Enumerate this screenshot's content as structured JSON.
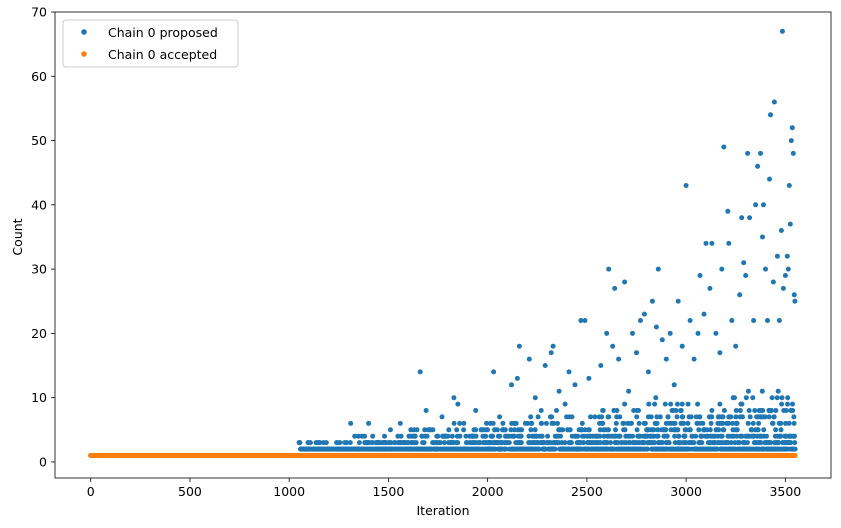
{
  "chart_data": {
    "type": "scatter",
    "title": "",
    "xlabel": "Iteration",
    "ylabel": "Count",
    "xlim": [
      -180,
      3730
    ],
    "ylim": [
      -2.5,
      70
    ],
    "xticks": [
      0,
      500,
      1000,
      1500,
      2000,
      2500,
      3000,
      3500
    ],
    "yticks": [
      0,
      10,
      20,
      30,
      40,
      50,
      60,
      70
    ],
    "grid": false,
    "legend_position": "top-left",
    "series": [
      {
        "name": "Chain 0 proposed",
        "color": "#1f77b4",
        "n_points": 3550,
        "baseline_value": 1,
        "points": [
          [
            1050,
            3
          ],
          [
            1090,
            2
          ],
          [
            1150,
            3
          ],
          [
            1200,
            2
          ],
          [
            1290,
            3
          ],
          [
            1310,
            6
          ],
          [
            1330,
            4
          ],
          [
            1350,
            2
          ],
          [
            1380,
            4
          ],
          [
            1400,
            6
          ],
          [
            1420,
            3
          ],
          [
            1450,
            2
          ],
          [
            1480,
            4
          ],
          [
            1510,
            5
          ],
          [
            1530,
            3
          ],
          [
            1560,
            6
          ],
          [
            1600,
            2
          ],
          [
            1630,
            3
          ],
          [
            1660,
            14
          ],
          [
            1690,
            8
          ],
          [
            1710,
            5
          ],
          [
            1740,
            3
          ],
          [
            1770,
            7
          ],
          [
            1800,
            4
          ],
          [
            1830,
            10
          ],
          [
            1850,
            9
          ],
          [
            1880,
            6
          ],
          [
            1910,
            3
          ],
          [
            1940,
            8
          ],
          [
            1970,
            5
          ],
          [
            2000,
            2
          ],
          [
            2030,
            14
          ],
          [
            2060,
            7
          ],
          [
            2090,
            4
          ],
          [
            2120,
            12
          ],
          [
            2150,
            13
          ],
          [
            2160,
            18
          ],
          [
            2190,
            6
          ],
          [
            2210,
            16
          ],
          [
            2240,
            10
          ],
          [
            2270,
            8
          ],
          [
            2290,
            15
          ],
          [
            2320,
            17
          ],
          [
            2330,
            18
          ],
          [
            2360,
            11
          ],
          [
            2390,
            9
          ],
          [
            2410,
            14
          ],
          [
            2440,
            12
          ],
          [
            2470,
            22
          ],
          [
            2490,
            22
          ],
          [
            2510,
            13
          ],
          [
            2540,
            7
          ],
          [
            2570,
            15
          ],
          [
            2600,
            20
          ],
          [
            2610,
            30
          ],
          [
            2630,
            18
          ],
          [
            2640,
            27
          ],
          [
            2660,
            16
          ],
          [
            2690,
            28
          ],
          [
            2710,
            11
          ],
          [
            2730,
            20
          ],
          [
            2750,
            17
          ],
          [
            2770,
            22
          ],
          [
            2790,
            23
          ],
          [
            2810,
            14
          ],
          [
            2830,
            25
          ],
          [
            2850,
            21
          ],
          [
            2860,
            30
          ],
          [
            2880,
            19
          ],
          [
            2900,
            16
          ],
          [
            2920,
            20
          ],
          [
            2940,
            12
          ],
          [
            2960,
            25
          ],
          [
            2980,
            18
          ],
          [
            3000,
            43
          ],
          [
            3020,
            22
          ],
          [
            3040,
            16
          ],
          [
            3060,
            20
          ],
          [
            3070,
            29
          ],
          [
            3090,
            23
          ],
          [
            3100,
            34
          ],
          [
            3120,
            27
          ],
          [
            3130,
            34
          ],
          [
            3150,
            20
          ],
          [
            3170,
            17
          ],
          [
            3180,
            30
          ],
          [
            3190,
            49
          ],
          [
            3210,
            39
          ],
          [
            3215,
            34
          ],
          [
            3230,
            22
          ],
          [
            3250,
            18
          ],
          [
            3270,
            26
          ],
          [
            3280,
            38
          ],
          [
            3290,
            31
          ],
          [
            3300,
            29
          ],
          [
            3310,
            48
          ],
          [
            3320,
            38
          ],
          [
            3340,
            22
          ],
          [
            3350,
            40
          ],
          [
            3360,
            46
          ],
          [
            3375,
            48
          ],
          [
            3385,
            35
          ],
          [
            3390,
            40
          ],
          [
            3400,
            30
          ],
          [
            3410,
            22
          ],
          [
            3420,
            44
          ],
          [
            3425,
            54
          ],
          [
            3440,
            28
          ],
          [
            3445,
            56
          ],
          [
            3460,
            32
          ],
          [
            3470,
            22
          ],
          [
            3480,
            36
          ],
          [
            3485,
            67
          ],
          [
            3490,
            27
          ],
          [
            3500,
            29
          ],
          [
            3510,
            32
          ],
          [
            3515,
            30
          ],
          [
            3520,
            43
          ],
          [
            3525,
            37
          ],
          [
            3530,
            50
          ],
          [
            3535,
            52
          ],
          [
            3540,
            48
          ],
          [
            3545,
            26
          ],
          [
            3548,
            25
          ]
        ]
      },
      {
        "name": "Chain 0 accepted",
        "color": "#ff7f0e",
        "n_points": 3550,
        "baseline_value": 1,
        "points": []
      }
    ]
  },
  "legend": {
    "items": [
      {
        "label": "Chain 0 proposed",
        "color": "#1f77b4"
      },
      {
        "label": "Chain 0 accepted",
        "color": "#ff7f0e"
      }
    ]
  }
}
